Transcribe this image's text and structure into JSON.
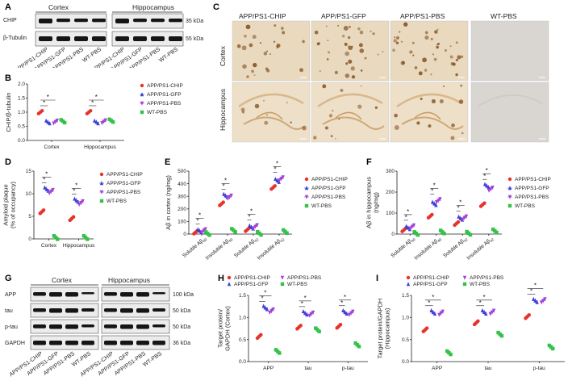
{
  "colors": {
    "chip": "#e8322c",
    "gfp": "#3f3fd8",
    "pbs": "#a442d6",
    "wt": "#34c24a"
  },
  "panels": {
    "A": "A",
    "B": "B",
    "C": "C",
    "D": "D",
    "E": "E",
    "F": "F",
    "G": "G",
    "H": "H",
    "I": "I"
  },
  "groups": [
    "APP/PS1-CHIP",
    "APP/PS1-GFP",
    "APP/PS1-PBS",
    "WT-PBS"
  ],
  "regions": {
    "cortex": "Cortex",
    "hippocampus": "Hippocampus"
  },
  "panel_a": {
    "rows": [
      "CHIP",
      "β-Tubulin"
    ],
    "kda": [
      "35 kDa",
      "55 kDa"
    ]
  },
  "panel_g": {
    "rows": [
      "APP",
      "tau",
      "p-tau",
      "GAPDH"
    ],
    "kda": [
      "100 kDa",
      "50 kDa",
      "50 kDa",
      "36 kDa"
    ]
  },
  "sig_mark": "*",
  "chart_data": [
    {
      "id": "B",
      "type": "scatter",
      "ylabel": "CHIP/β-tubulin",
      "ylim": [
        0,
        2
      ],
      "yticks": [
        "0.0",
        "0.5",
        "1.0",
        "1.5",
        "2.0"
      ],
      "categories": [
        "Cortex",
        "Hippocampus"
      ],
      "series": [
        {
          "name": "APP/PS1-CHIP",
          "values": [
            1.0,
            1.0
          ]
        },
        {
          "name": "APP/PS1-GFP",
          "values": [
            0.65,
            0.65
          ]
        },
        {
          "name": "APP/PS1-PBS",
          "values": [
            0.66,
            0.67
          ]
        },
        {
          "name": "WT-PBS",
          "values": [
            0.68,
            0.7
          ]
        }
      ]
    },
    {
      "id": "D",
      "type": "scatter",
      "ylabel": "Amyloid plaque (% of occupancy)",
      "ylim": [
        0,
        15
      ],
      "yticks": [
        "0",
        "5",
        "10",
        "15"
      ],
      "categories": [
        "Cortex",
        "Hippocampus"
      ],
      "series": [
        {
          "name": "APP/PS1-CHIP",
          "values": [
            6.0,
            4.5
          ]
        },
        {
          "name": "APP/PS1-GFP",
          "values": [
            11.0,
            8.5
          ]
        },
        {
          "name": "APP/PS1-PBS",
          "values": [
            10.5,
            8.0
          ]
        },
        {
          "name": "WT-PBS",
          "values": [
            0.3,
            0.3
          ]
        }
      ]
    },
    {
      "id": "E",
      "type": "scatter",
      "ylabel": "Aβ in cortex (ng/mg)",
      "ylim": [
        0,
        500
      ],
      "yticks": [
        "0",
        "100",
        "200",
        "300",
        "400",
        "500"
      ],
      "categories": [
        "Soluble Aβ40",
        "Insoluble Aβ40",
        "Soluble Aβ42",
        "Insoluble Aβ42"
      ],
      "series": [
        {
          "name": "APP/PS1-CHIP",
          "values": [
            15,
            240,
            35,
            370
          ]
        },
        {
          "name": "APP/PS1-GFP",
          "values": [
            25,
            305,
            55,
            425
          ]
        },
        {
          "name": "APP/PS1-PBS",
          "values": [
            28,
            295,
            60,
            440
          ]
        },
        {
          "name": "WT-PBS",
          "values": [
            4,
            30,
            6,
            20
          ]
        }
      ]
    },
    {
      "id": "F",
      "type": "scatter",
      "ylabel": "Aβ in hippocampus (ng/mg)",
      "ylim": [
        0,
        300
      ],
      "yticks": [
        "0",
        "100",
        "200",
        "300"
      ],
      "categories": [
        "Soluble Aβ40",
        "Insoluble Aβ40",
        "Soluble Aβ42",
        "Insoluble Aβ42"
      ],
      "series": [
        {
          "name": "APP/PS1-CHIP",
          "values": [
            20,
            85,
            50,
            140
          ]
        },
        {
          "name": "APP/PS1-GFP",
          "values": [
            30,
            145,
            75,
            230
          ]
        },
        {
          "name": "APP/PS1-PBS",
          "values": [
            35,
            160,
            78,
            215
          ]
        },
        {
          "name": "WT-PBS",
          "values": [
            3,
            10,
            4,
            15
          ]
        }
      ]
    },
    {
      "id": "H",
      "type": "scatter",
      "ylabel": "Target protein/ GAPDH (Cortex)",
      "ylim": [
        0,
        1.5
      ],
      "yticks": [
        "0.0",
        "0.5",
        "1.0",
        "1.5"
      ],
      "categories": [
        "APP",
        "tau",
        "p-tau"
      ],
      "series": [
        {
          "name": "APP/PS1-CHIP",
          "values": [
            0.57,
            0.78,
            0.8
          ]
        },
        {
          "name": "APP/PS1-GFP",
          "values": [
            1.22,
            1.1,
            1.12
          ]
        },
        {
          "name": "APP/PS1-PBS",
          "values": [
            1.15,
            1.08,
            1.1
          ]
        },
        {
          "name": "WT-PBS",
          "values": [
            0.23,
            0.72,
            0.38
          ]
        }
      ]
    },
    {
      "id": "I",
      "type": "scatter",
      "ylabel": "Target protein/GAPDH (Hippocampus)",
      "ylim": [
        0,
        1.5
      ],
      "yticks": [
        "0.0",
        "0.5",
        "1.0",
        "1.5"
      ],
      "categories": [
        "APP",
        "tau",
        "p-tau"
      ],
      "series": [
        {
          "name": "APP/PS1-CHIP",
          "values": [
            0.72,
            0.88,
            1.02
          ]
        },
        {
          "name": "APP/PS1-GFP",
          "values": [
            1.12,
            1.12,
            1.38
          ]
        },
        {
          "name": "APP/PS1-PBS",
          "values": [
            1.1,
            1.12,
            1.38
          ]
        },
        {
          "name": "WT-PBS",
          "values": [
            0.2,
            0.62,
            0.33
          ]
        }
      ]
    }
  ]
}
